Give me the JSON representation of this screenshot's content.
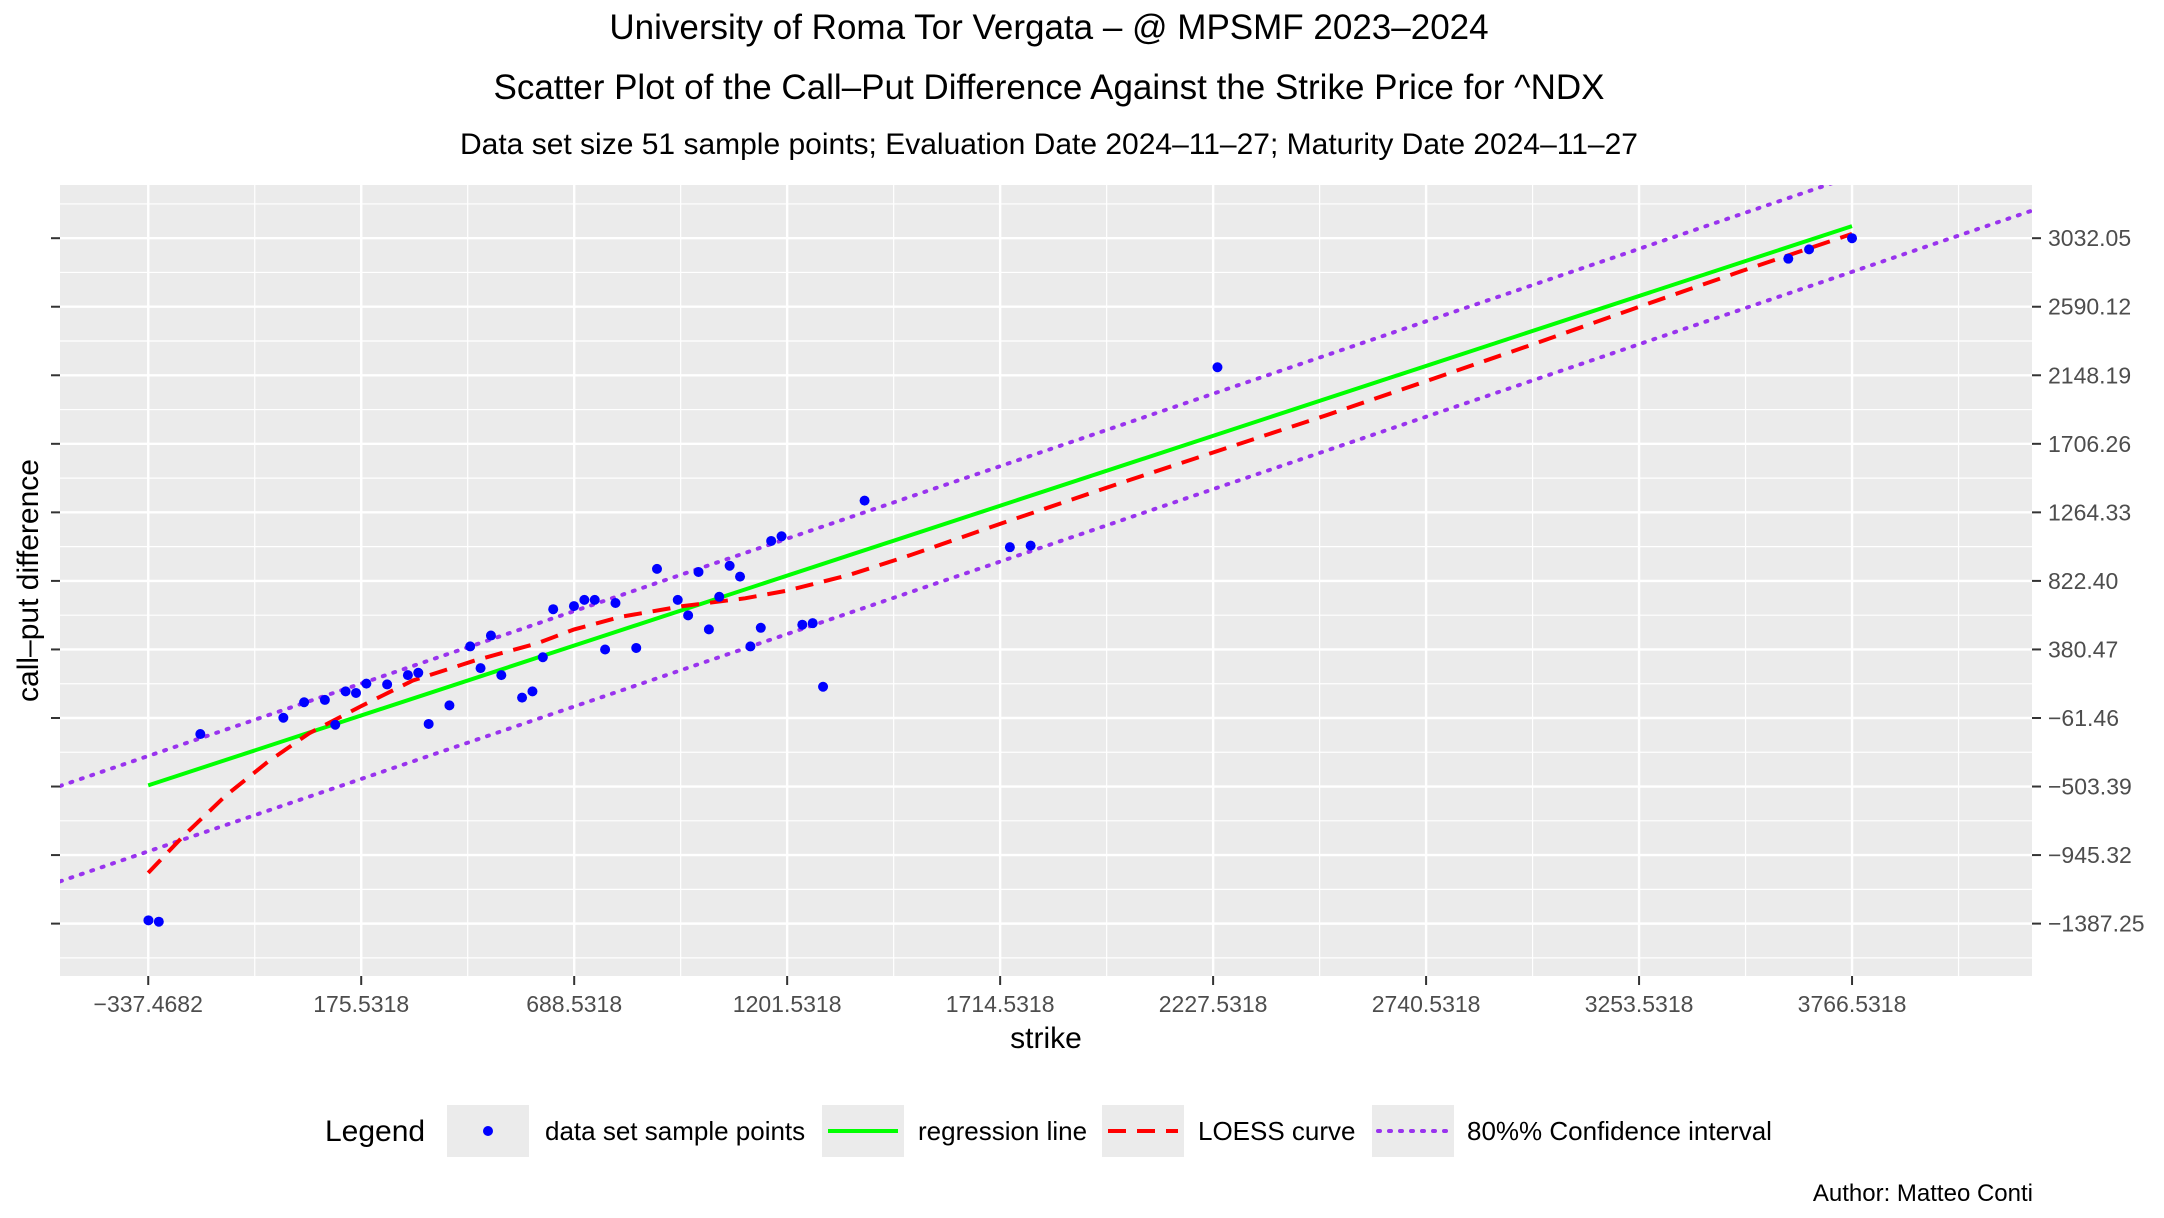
{
  "titles": {
    "line1": "University of Roma Tor Vergata – @ MPSMF 2023–2024",
    "line2": "Scatter Plot of the Call–Put Difference Against the Strike Price for  ^NDX",
    "line3": "Data set size  51  sample points;    Evaluation Date 2024–11–27;   Maturity Date 2024–11–27"
  },
  "author": "Author: Matteo Conti",
  "colors": {
    "panel_bg": "#ebebeb",
    "grid": "#ffffff",
    "points": "#0000ff",
    "regression": "#00ff00",
    "loess": "#ff0000",
    "confidence": "#9933ee"
  },
  "chart_data": {
    "type": "scatter",
    "xlabel": "strike",
    "ylabel": "call–put difference",
    "xlim": [
      -550,
      4200
    ],
    "ylim": [
      -1725,
      3375
    ],
    "x_ticks": [
      -337.4682,
      175.5318,
      688.5318,
      1201.5318,
      1714.5318,
      2227.5318,
      2740.5318,
      3253.5318,
      3766.5318
    ],
    "x_tick_labels": [
      "−337.4682",
      "175.5318",
      "688.5318",
      "1201.5318",
      "1714.5318",
      "2227.5318",
      "2740.5318",
      "3253.5318",
      "3766.5318"
    ],
    "y_ticks": [
      -1387.25,
      -945.32,
      -503.39,
      -61.46,
      380.47,
      822.4,
      1264.33,
      1706.26,
      2148.19,
      2590.12,
      3032.05
    ],
    "y_tick_labels": [
      "−1387.25",
      "−945.32",
      "−503.39",
      "−61.46",
      "380.47",
      "822.40",
      "1264.33",
      "1706.26",
      "2148.19",
      "2590.12",
      "3032.05"
    ],
    "y_axis_side": "right",
    "grid": true,
    "legend_position": "bottom",
    "legend": {
      "title": "Legend",
      "items": [
        "data set sample points",
        "regression line",
        "LOESS curve",
        "80%% Confidence interval"
      ]
    },
    "points": [
      [
        -337,
        -1366
      ],
      [
        -312,
        -1375
      ],
      [
        -212,
        -165
      ],
      [
        -12,
        -60
      ],
      [
        38,
        40
      ],
      [
        88,
        55
      ],
      [
        113,
        -105
      ],
      [
        138,
        110
      ],
      [
        163,
        100
      ],
      [
        188,
        160
      ],
      [
        238,
        155
      ],
      [
        288,
        215
      ],
      [
        313,
        230
      ],
      [
        338,
        -100
      ],
      [
        388,
        20
      ],
      [
        438,
        400
      ],
      [
        463,
        260
      ],
      [
        488,
        470
      ],
      [
        513,
        215
      ],
      [
        563,
        70
      ],
      [
        588,
        110
      ],
      [
        613,
        330
      ],
      [
        638,
        640
      ],
      [
        688,
        660
      ],
      [
        713,
        700
      ],
      [
        738,
        700
      ],
      [
        763,
        380
      ],
      [
        788,
        680
      ],
      [
        838,
        390
      ],
      [
        888,
        900
      ],
      [
        938,
        700
      ],
      [
        963,
        600
      ],
      [
        988,
        880
      ],
      [
        1013,
        510
      ],
      [
        1038,
        720
      ],
      [
        1063,
        920
      ],
      [
        1088,
        850
      ],
      [
        1113,
        400
      ],
      [
        1138,
        520
      ],
      [
        1163,
        1080
      ],
      [
        1188,
        1110
      ],
      [
        1238,
        540
      ],
      [
        1263,
        550
      ],
      [
        1288,
        140
      ],
      [
        1388,
        1340
      ],
      [
        1738,
        1040
      ],
      [
        1788,
        1050
      ],
      [
        2238,
        2200
      ],
      [
        3613,
        2900
      ],
      [
        3663,
        2960
      ],
      [
        3766.5,
        3032
      ]
    ],
    "regression_line": [
      [
        -337.4682,
        -496
      ],
      [
        3766.5318,
        3110
      ]
    ],
    "loess_curve": [
      [
        -337.4682,
        -1060
      ],
      [
        -250,
        -815
      ],
      [
        -150,
        -560
      ],
      [
        -50,
        -345
      ],
      [
        50,
        -160
      ],
      [
        175.5318,
        15
      ],
      [
        300,
        180
      ],
      [
        450,
        310
      ],
      [
        600,
        420
      ],
      [
        688.5318,
        510
      ],
      [
        800,
        590
      ],
      [
        950,
        660
      ],
      [
        1100,
        710
      ],
      [
        1201.5318,
        760
      ],
      [
        1350,
        860
      ],
      [
        1500,
        990
      ],
      [
        1714.5318,
        1190
      ],
      [
        2000,
        1450
      ],
      [
        2227.5318,
        1650
      ],
      [
        2500,
        1890
      ],
      [
        2740.5318,
        2110
      ],
      [
        3000,
        2350
      ],
      [
        3253.5318,
        2590
      ],
      [
        3500,
        2820
      ],
      [
        3766.5318,
        3060
      ]
    ],
    "confidence_upper": [
      [
        -550,
        -500
      ],
      [
        4200,
        3825
      ]
    ],
    "confidence_lower": [
      [
        -550,
        -1115
      ],
      [
        4200,
        3210
      ]
    ]
  }
}
